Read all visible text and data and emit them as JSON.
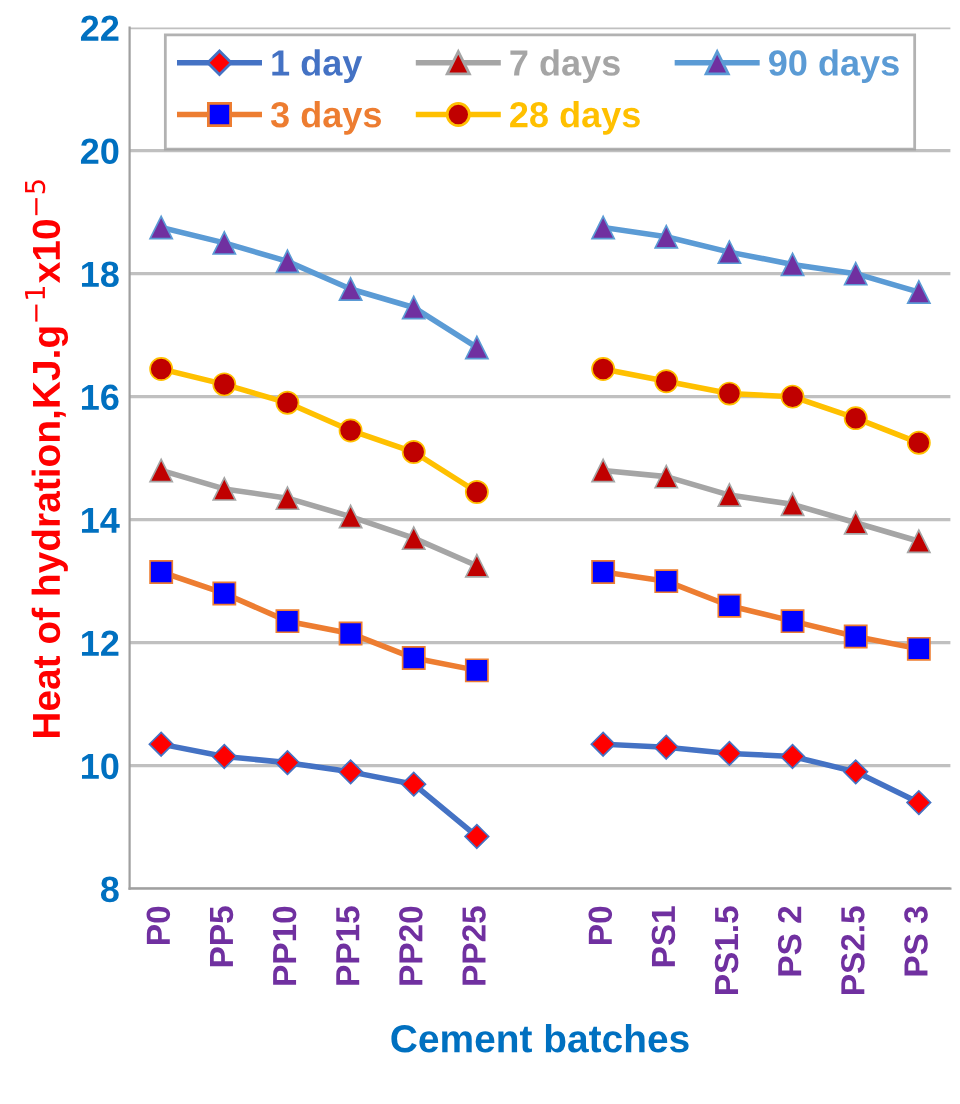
{
  "chart_data": {
    "type": "line",
    "xlabel": "Cement batches",
    "ylabel": "Heat of hydration,KJ.g$^{−1}$x10$^{−5}$",
    "categories": [
      "P0",
      "PP5",
      "PP10",
      "PP15",
      "PP20",
      "PP25",
      null,
      "P0",
      "PS1",
      "PS1.5",
      "PS 2",
      "PS2.5",
      "PS 3"
    ],
    "ylim": [
      8,
      22
    ],
    "yticks": [
      8,
      10,
      12,
      14,
      16,
      18,
      20,
      22
    ],
    "grid": "y",
    "legend": "top",
    "series": [
      {
        "name": "1 day",
        "color": "#4472c4",
        "marker": "diamond",
        "colors": [
          "#ff0000",
          "#ff0000",
          "#ff0000",
          "#ff0000",
          "#ff0000",
          "#ff0000",
          null,
          "#ff0000",
          "#ff0000",
          "#ff0000",
          "#ff0000",
          "#ff0000",
          "#ff0000"
        ],
        "values": [
          10.35,
          10.15,
          10.05,
          9.9,
          9.7,
          8.85,
          null,
          10.35,
          10.3,
          10.2,
          10.15,
          9.9,
          9.4
        ]
      },
      {
        "name": "3 days",
        "color": "#ed7d31",
        "marker": "square",
        "colors": [
          "#0000ff",
          "#0000ff",
          "#0000ff",
          "#0000ff",
          "#0000ff",
          "#0000ff",
          null,
          "#0000ff",
          "#0000ff",
          "#0000ff",
          "#0000ff",
          "#0000ff",
          "#0000ff"
        ],
        "values": [
          13.15,
          12.8,
          12.35,
          12.15,
          11.75,
          11.55,
          null,
          13.15,
          13.0,
          12.6,
          12.35,
          12.1,
          11.9
        ]
      },
      {
        "name": "7 days",
        "color": "#a5a5a5",
        "marker": "triangle",
        "colors": [
          "#c00000",
          "#c00000",
          "#c00000",
          "#c00000",
          "#c00000",
          "#c00000",
          null,
          "#c00000",
          "#c00000",
          "#c00000",
          "#c00000",
          "#c00000",
          "#c00000"
        ],
        "values": [
          14.8,
          14.5,
          14.35,
          14.05,
          13.7,
          13.25,
          null,
          14.8,
          14.7,
          14.4,
          14.25,
          13.95,
          13.65
        ]
      },
      {
        "name": "28 days",
        "color": "#ffc000",
        "marker": "circle",
        "colors": [
          "#c00000",
          "#c00000",
          "#c00000",
          "#c00000",
          "#c00000",
          "#c00000",
          null,
          "#c00000",
          "#c00000",
          "#c00000",
          "#c00000",
          "#c00000",
          "#c00000"
        ],
        "values": [
          16.45,
          16.2,
          15.9,
          15.45,
          15.1,
          14.45,
          null,
          16.45,
          16.25,
          16.05,
          16.0,
          15.65,
          15.25
        ]
      },
      {
        "name": "90 days",
        "color": "#5b9bd5",
        "marker": "triangle",
        "colors": [
          "#7030a0",
          "#7030a0",
          "#7030a0",
          "#7030a0",
          "#7030a0",
          "#7030a0",
          null,
          "#7030a0",
          "#7030a0",
          "#7030a0",
          "#7030a0",
          "#7030a0",
          "#7030a0"
        ],
        "values": [
          18.75,
          18.5,
          18.2,
          17.75,
          17.45,
          16.8,
          null,
          18.75,
          18.6,
          18.35,
          18.15,
          18.0,
          17.7
        ]
      }
    ]
  }
}
